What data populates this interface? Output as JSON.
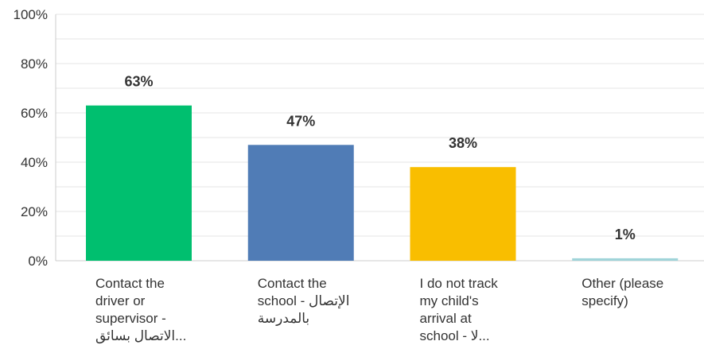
{
  "chart_data": {
    "type": "bar",
    "categories": [
      "Contact the\ndriver or\nsupervisor -\nالاتصال بسائق...",
      "Contact the\nschool - الإتصال\nبالمدرسة",
      "I do not track\nmy child's\narrival at\nschool - لا...",
      "Other (please\nspecify)"
    ],
    "values": [
      63,
      47,
      38,
      1
    ],
    "data_labels": [
      "63%",
      "47%",
      "38%",
      "1%"
    ],
    "colors": [
      "#00BF6F",
      "#507CB6",
      "#F9BE00",
      "#A0D4D9"
    ],
    "yticks": [
      "0%",
      "20%",
      "40%",
      "60%",
      "80%",
      "100%"
    ],
    "ylim": [
      0,
      100
    ],
    "grid": true,
    "title": "",
    "xlabel": "",
    "ylabel": ""
  }
}
